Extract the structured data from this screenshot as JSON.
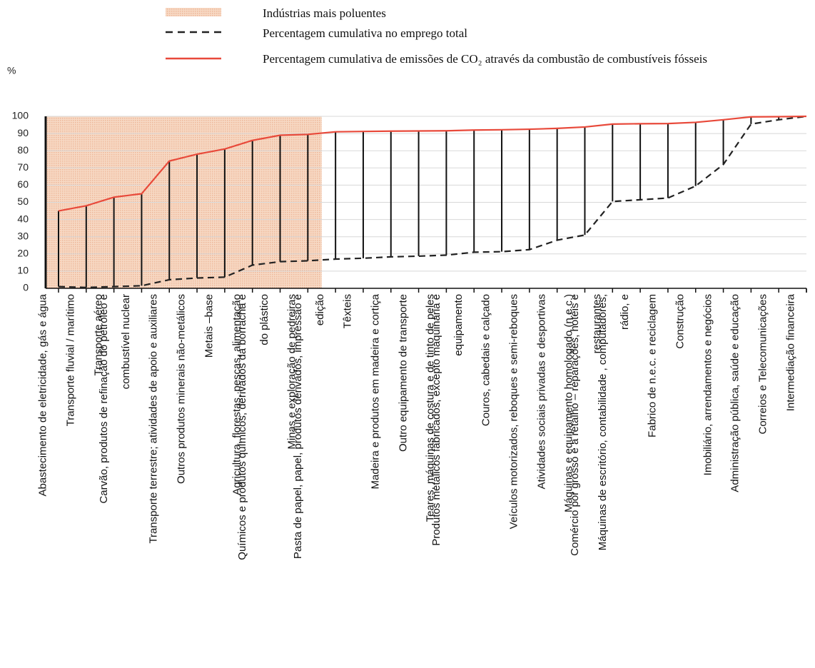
{
  "chart_data": {
    "type": "line",
    "y_label": "%",
    "categories": [
      "Abastecimento de eletricidade, gás e água",
      "Transporte fluvial / marítimo",
      "Transporte aéreo",
      "Carvão, produtos de refinação do petróleo e\ncombustível nuclear",
      "Transporte terrestre; atividades de apoio e auxiliares",
      "Outros produtos minerais não-metálicos",
      "Metais –base",
      "Agricultura, florestas, pescas, alimentação",
      "Químicos e produtos químicos, derivados da borracha e\ndo plástico",
      "Minas e exploração de pedreiras",
      "Pasta de papel, papel, produtos derivados, impressão e\nedição",
      "Têxteis",
      "Madeira e produtos em madeira e cortiça",
      "Outro equipamento de transporte",
      "Teares, máquinas de costura e de tinto de peles",
      "Produtos metálicos fabricados, excepto maquinaria e\nequipamento",
      "Couros, cabedais e calçado",
      "Veículos motorizados, reboques e semi-reboques",
      "Atividades  sociais privadas e desportivas",
      "Máquinas e equipamento homologado (n.e.c.)",
      "Comércio por grosso e  a retalho –  reparações, hotéis e\nrestaurantes",
      "Máquinas de escritório, contabilidade , computadores,\nrádio, e",
      "Fabrico de n.e.c. e reciclagem",
      "Construção",
      "Imobiliário, arrendamentos e negócios",
      "Administração pública, saúde e educação",
      "Correios e Telecomunicações",
      "Intermediação financeira"
    ],
    "shaded": {
      "name": "Indústrias mais poluentes",
      "color": "#f7d9c4",
      "from": 0,
      "to": 9
    },
    "series": [
      {
        "name": "Percentagem cumulativa no emprego total",
        "color": "#222222",
        "dashed": true,
        "values": [
          1,
          0.5,
          1,
          1.5,
          5,
          6,
          6.5,
          13.5,
          15.5,
          16,
          17,
          17.5,
          18.3,
          18.7,
          19.3,
          21,
          21.3,
          22.5,
          28,
          31,
          50.5,
          51.5,
          52.5,
          59.5,
          72,
          95.5,
          98,
          100
        ]
      },
      {
        "name": "Percentagem cumulativa de emissões de CO₂ através da combustão de combustíveis fósseis",
        "color": "#e8493a",
        "dashed": false,
        "values": [
          45,
          48,
          53,
          55,
          74,
          78,
          81,
          86,
          89,
          89.5,
          91,
          91.2,
          91.4,
          91.5,
          91.6,
          92,
          92.2,
          92.5,
          93,
          93.8,
          95.5,
          95.7,
          95.8,
          96.5,
          98,
          99.7,
          99.8,
          100
        ]
      }
    ],
    "ylim": [
      0,
      100
    ],
    "yticks": [
      0,
      10,
      20,
      30,
      40,
      50,
      60,
      70,
      80,
      90,
      100
    ],
    "grid": true
  }
}
